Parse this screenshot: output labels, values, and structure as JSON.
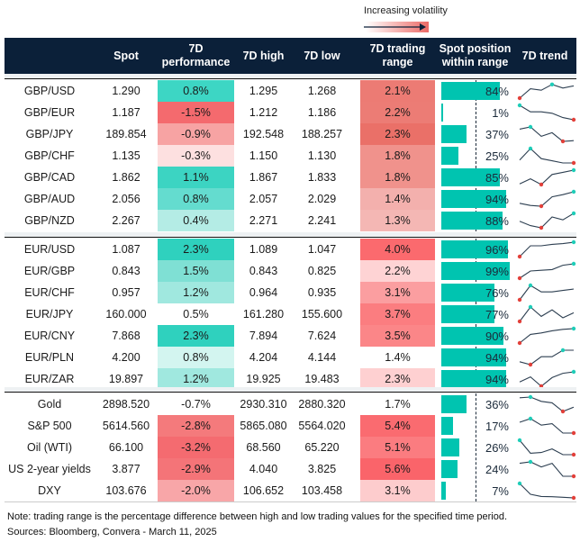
{
  "legend": {
    "label": "Increasing volatility"
  },
  "chart_data": {
    "type": "table",
    "columns": [
      "",
      "Spot",
      "7D performance",
      "7D high",
      "7D low",
      "7D trading range",
      "Spot position within range",
      "7D trend"
    ],
    "groups": [
      [
        {
          "name": "GBP/USD",
          "spot": "1.290",
          "perf": "0.8%",
          "perf_color": "#3dd6c4",
          "high": "1.295",
          "low": "1.268",
          "range": "2.1%",
          "range_color": "#ec7b74",
          "pos": 84,
          "trend": [
            0,
            0.65,
            0.55,
            0.95,
            0.7,
            0.85
          ]
        },
        {
          "name": "GBP/EUR",
          "spot": "1.187",
          "perf": "-1.5%",
          "perf_color": "#f46a6e",
          "high": "1.212",
          "low": "1.186",
          "range": "2.2%",
          "range_color": "#ec7c75",
          "pos": 1,
          "trend": [
            1,
            0.55,
            0.55,
            0.45,
            0.15,
            0
          ]
        },
        {
          "name": "GBP/JPY",
          "spot": "189.854",
          "perf": "-0.9%",
          "perf_color": "#f7a3a3",
          "high": "192.548",
          "low": "188.257",
          "range": "2.3%",
          "range_color": "#ea7068",
          "pos": 37,
          "trend": [
            0.85,
            1,
            0.35,
            0.6,
            0,
            0.05
          ]
        },
        {
          "name": "GBP/CHF",
          "spot": "1.135",
          "perf": "-0.3%",
          "perf_color": "#fde0e0",
          "high": "1.150",
          "low": "1.130",
          "range": "1.8%",
          "range_color": "#f0928c",
          "pos": 25,
          "trend": [
            0.2,
            1,
            0.3,
            0.15,
            0,
            0
          ]
        },
        {
          "name": "GBP/CAD",
          "spot": "1.862",
          "perf": "1.1%",
          "perf_color": "#3cd4c2",
          "high": "1.867",
          "low": "1.833",
          "range": "1.8%",
          "range_color": "#f0928c",
          "pos": 85,
          "trend": [
            0.05,
            0.4,
            0,
            0.7,
            0.85,
            1
          ]
        },
        {
          "name": "GBP/AUD",
          "spot": "2.056",
          "perf": "0.8%",
          "perf_color": "#64dccf",
          "high": "2.057",
          "low": "2.029",
          "range": "1.4%",
          "range_color": "#f3b0ad",
          "pos": 94,
          "trend": [
            0.2,
            0.05,
            0,
            0.65,
            0.8,
            1
          ]
        },
        {
          "name": "GBP/NZD",
          "spot": "2.267",
          "perf": "0.4%",
          "perf_color": "#b4ece5",
          "high": "2.271",
          "low": "2.241",
          "range": "1.3%",
          "range_color": "#f4b7b4",
          "pos": 88,
          "trend": [
            0.45,
            0.15,
            0,
            0.75,
            0.55,
            1
          ]
        }
      ],
      [
        {
          "name": "EUR/USD",
          "spot": "1.087",
          "perf": "2.3%",
          "perf_color": "#2fd1be",
          "high": "1.089",
          "low": "1.047",
          "range": "4.0%",
          "range_color": "#fb6a6e",
          "pos": 96,
          "trend": [
            0,
            0.75,
            0.75,
            0.85,
            0.9,
            1
          ]
        },
        {
          "name": "EUR/GBP",
          "spot": "0.843",
          "perf": "1.5%",
          "perf_color": "#7fe0d4",
          "high": "0.843",
          "low": "0.825",
          "range": "2.2%",
          "range_color": "#fed3d4",
          "pos": 99,
          "trend": [
            0,
            0.5,
            0.55,
            0.6,
            0.9,
            1
          ]
        },
        {
          "name": "EUR/CHF",
          "spot": "0.957",
          "perf": "1.2%",
          "perf_color": "#a0e8df",
          "high": "0.964",
          "low": "0.935",
          "range": "3.1%",
          "range_color": "#fb9ea0",
          "pos": 76,
          "trend": [
            0,
            1,
            0.55,
            0.55,
            0.65,
            0.75
          ]
        },
        {
          "name": "EUR/JPY",
          "spot": "160.000",
          "perf": "0.5%",
          "perf_color": "#ffffff",
          "high": "161.280",
          "low": "155.600",
          "range": "3.7%",
          "range_color": "#fb7d80",
          "pos": 77,
          "trend": [
            0,
            1,
            0.35,
            0.8,
            0.25,
            0.6
          ]
        },
        {
          "name": "EUR/CNY",
          "spot": "7.868",
          "perf": "2.3%",
          "perf_color": "#2fd1be",
          "high": "7.894",
          "low": "7.624",
          "range": "3.5%",
          "range_color": "#fb8688",
          "pos": 90,
          "trend": [
            0,
            0.6,
            0.7,
            0.85,
            0.95,
            1
          ]
        },
        {
          "name": "EUR/PLN",
          "spot": "4.200",
          "perf": "0.8%",
          "perf_color": "#d3f5f0",
          "high": "4.204",
          "low": "4.144",
          "range": "1.4%",
          "range_color": "#ffffff",
          "pos": 94,
          "trend": [
            0.2,
            0,
            0.55,
            0.55,
            1,
            1
          ]
        },
        {
          "name": "EUR/ZAR",
          "spot": "19.897",
          "perf": "1.2%",
          "perf_color": "#a0e8df",
          "high": "19.925",
          "low": "19.483",
          "range": "2.3%",
          "range_color": "#fed0d1",
          "pos": 94,
          "trend": [
            0.3,
            0.65,
            0,
            0.6,
            0.9,
            1
          ]
        }
      ],
      [
        {
          "name": "Gold",
          "spot": "2898.520",
          "perf": "-0.7%",
          "perf_color": "#ffffff",
          "high": "2930.310",
          "low": "2880.320",
          "range": "1.7%",
          "range_color": "#ffffff",
          "pos": 36,
          "trend": [
            0.95,
            1,
            0.7,
            0.6,
            0,
            0.3
          ]
        },
        {
          "name": "S&P 500",
          "spot": "5614.560",
          "perf": "-2.8%",
          "perf_color": "#f47a7c",
          "high": "5865.080",
          "low": "5564.020",
          "range": "5.4%",
          "range_color": "#fa6b70",
          "pos": 17,
          "trend": [
            0.75,
            1,
            0.55,
            0.65,
            0,
            0
          ]
        },
        {
          "name": "Oil (WTI)",
          "spot": "66.100",
          "perf": "-3.2%",
          "perf_color": "#f46b70",
          "high": "68.560",
          "low": "65.220",
          "range": "5.1%",
          "range_color": "#fb7c80",
          "pos": 26,
          "trend": [
            1,
            0.1,
            0.15,
            0.4,
            0,
            0
          ]
        },
        {
          "name": "US 2-year yields",
          "spot": "3.877",
          "perf": "-2.9%",
          "perf_color": "#f47478",
          "high": "4.040",
          "low": "3.825",
          "range": "5.6%",
          "range_color": "#fa646a",
          "pos": 24,
          "trend": [
            0.9,
            1,
            0.65,
            0.9,
            0,
            0
          ]
        },
        {
          "name": "DXY",
          "spot": "103.676",
          "perf": "-2.0%",
          "perf_color": "#f8a6a8",
          "high": "106.652",
          "low": "103.458",
          "range": "3.1%",
          "range_color": "#fdcccd",
          "pos": 7,
          "trend": [
            1,
            0.25,
            0.1,
            0.08,
            0.04,
            0
          ]
        }
      ]
    ],
    "colors": {
      "header": "#0b2039",
      "bar": "#00c4b0",
      "trend_high": "#1fcdb8",
      "trend_low": "#e2403a"
    }
  },
  "notes": {
    "note": "Note: trading range is the percentage difference between high and low trading values for the specified time period.",
    "sources": "Sources: Bloomberg, Convera - March 11, 2025"
  }
}
